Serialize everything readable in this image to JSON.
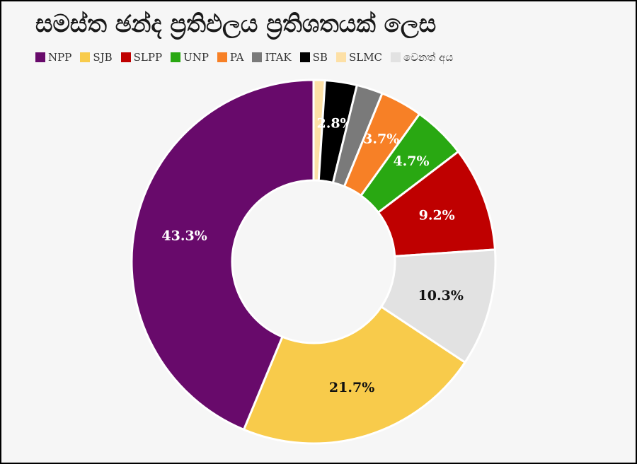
{
  "title": "සමස්ත ඡන්ද ප්‍රතිඵලය ප්‍රතිශතයක් ලෙස",
  "chart_data": {
    "type": "pie",
    "donut": true,
    "title": "සමස්ත ඡන්ද ප්‍රතිඵලය ප්‍රතිශතයක් ලෙස",
    "legend_position": "top-left",
    "slices": [
      {
        "name": "SLMC",
        "value": 1.0,
        "color": "#fde0a6",
        "label": ""
      },
      {
        "name": "SB",
        "value": 2.8,
        "color": "#000000",
        "label": "2.8%"
      },
      {
        "name": "ITAK",
        "value": 2.3,
        "color": "#7a7a7a",
        "label": ""
      },
      {
        "name": "PA",
        "value": 3.7,
        "color": "#f78026",
        "label": "3.7%"
      },
      {
        "name": "UNP",
        "value": 4.7,
        "color": "#29a812",
        "label": "4.7%"
      },
      {
        "name": "SLPP",
        "value": 9.2,
        "color": "#bf0000",
        "label": "9.2%"
      },
      {
        "name": "වෙනත් අය",
        "value": 10.3,
        "color": "#e2e2e2",
        "label": "10.3%"
      },
      {
        "name": "SJB",
        "value": 21.7,
        "color": "#f8cb4b",
        "label": "21.7%"
      },
      {
        "name": "NPP",
        "value": 43.3,
        "color": "#680a6b",
        "label": "43.3%"
      }
    ],
    "legend_order": [
      "NPP",
      "SJB",
      "SLPP",
      "UNP",
      "PA",
      "ITAK",
      "SB",
      "SLMC",
      "වෙනත් අය"
    ]
  }
}
